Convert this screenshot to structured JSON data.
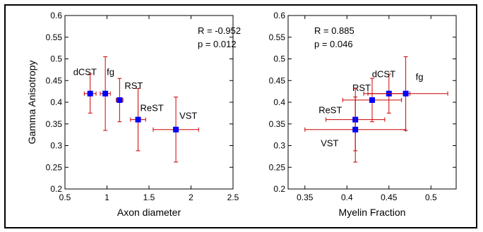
{
  "chart_data": [
    {
      "type": "scatter",
      "title": "",
      "xlabel": "Axon diameter",
      "ylabel": "Gamma Anisotropy",
      "xlim": [
        0.5,
        2.5
      ],
      "ylim": [
        0.2,
        0.6
      ],
      "xticks": [
        "0.5",
        "1",
        "1.5",
        "2",
        "2.5"
      ],
      "yticks": [
        "0.2",
        "0.25",
        "0.3",
        "0.35",
        "0.4",
        "0.45",
        "0.5",
        "0.55",
        "0.6"
      ],
      "grid": false,
      "legend": false,
      "annotations": [
        "R = -0.952",
        "p = 0.012"
      ],
      "marker_color": "#0000ff",
      "errorbar_color": "#cc0000",
      "points": [
        {
          "label": "dCST",
          "x": 0.8,
          "y": 0.42,
          "xerr": 0.07,
          "yerr_low": 0.045,
          "yerr_high": 0.045
        },
        {
          "label": "fg",
          "x": 0.98,
          "y": 0.42,
          "xerr": 0.06,
          "yerr_low": 0.085,
          "yerr_high": 0.085
        },
        {
          "label": "RST",
          "x": 1.15,
          "y": 0.405,
          "xerr": 0.04,
          "yerr_low": 0.05,
          "yerr_high": 0.05
        },
        {
          "label": "ReST",
          "x": 1.37,
          "y": 0.36,
          "xerr": 0.09,
          "yerr_low": 0.072,
          "yerr_high": 0.072
        },
        {
          "label": "VST",
          "x": 1.82,
          "y": 0.337,
          "xerr": 0.27,
          "yerr_low": 0.075,
          "yerr_high": 0.075
        }
      ]
    },
    {
      "type": "scatter",
      "title": "",
      "xlabel": "Myelin Fraction",
      "ylabel": "",
      "xlim": [
        0.33,
        0.53
      ],
      "ylim": [
        0.2,
        0.6
      ],
      "xticks": [
        "0.35",
        "0.4",
        "0.45",
        "0.5"
      ],
      "yticks": [
        "0.2",
        "0.25",
        "0.3",
        "0.35",
        "0.4",
        "0.45",
        "0.5",
        "0.55",
        "0.6"
      ],
      "grid": false,
      "legend": false,
      "annotations": [
        "R = 0.885",
        "p = 0.046"
      ],
      "marker_color": "#0000ff",
      "errorbar_color": "#cc0000",
      "points": [
        {
          "label": "dCST",
          "x": 0.45,
          "y": 0.42,
          "xerr": 0.025,
          "yerr_low": 0.045,
          "yerr_high": 0.045
        },
        {
          "label": "fg",
          "x": 0.47,
          "y": 0.42,
          "xerr": 0.05,
          "yerr_low": 0.085,
          "yerr_high": 0.085
        },
        {
          "label": "RST",
          "x": 0.43,
          "y": 0.405,
          "xerr": 0.035,
          "yerr_low": 0.05,
          "yerr_high": 0.05
        },
        {
          "label": "ReST",
          "x": 0.41,
          "y": 0.36,
          "xerr": 0.035,
          "yerr_low": 0.072,
          "yerr_high": 0.072
        },
        {
          "label": "VST",
          "x": 0.41,
          "y": 0.337,
          "xerr": 0.06,
          "yerr_low": 0.075,
          "yerr_high": 0.075
        }
      ]
    }
  ]
}
